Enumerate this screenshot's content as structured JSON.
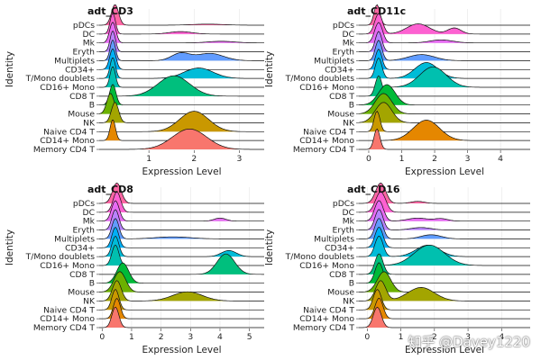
{
  "watermark": "知乎 @Davey1220",
  "palette": [
    "#F8766D",
    "#E58700",
    "#C99800",
    "#A3A500",
    "#6BB100",
    "#00BA38",
    "#00BF7D",
    "#00C0AF",
    "#00BCD8",
    "#00B0F6",
    "#619CFF",
    "#B983FF",
    "#E76BF3",
    "#FD61D1",
    "#FF67A4"
  ],
  "chart_data": [
    {
      "type": "ridgeline",
      "title": "adt_CD3",
      "xlabel": "Expression Level",
      "ylabel": "Identity",
      "xticks": [
        1,
        2,
        3
      ],
      "xlim": [
        -0.1,
        3.55
      ],
      "categories": [
        "Memory CD4 T",
        "CD14+ Mono",
        "Naive CD4 T",
        "NK",
        "Mouse",
        "B",
        "CD8 T",
        "CD16+ Mono",
        "T/Mono doublets",
        "CD34+",
        "Multiplets",
        "Eryth",
        "Mk",
        "DC",
        "pDCs"
      ],
      "series": [
        {
          "name": "Memory CD4 T",
          "peaks": [
            [
              1.9,
              0.38,
              1.0
            ]
          ]
        },
        {
          "name": "CD14+ Mono",
          "peaks": [
            [
              0.2,
              0.06,
              1.0
            ]
          ]
        },
        {
          "name": "Naive CD4 T",
          "peaks": [
            [
              2.0,
              0.32,
              1.0
            ]
          ]
        },
        {
          "name": "NK",
          "peaks": [
            [
              0.25,
              0.08,
              1.0
            ]
          ]
        },
        {
          "name": "Mouse",
          "peaks": [
            [
              0.15,
              0.08,
              1.0
            ]
          ]
        },
        {
          "name": "B",
          "peaks": [
            [
              0.2,
              0.07,
              1.0
            ]
          ]
        },
        {
          "name": "CD8 T",
          "peaks": [
            [
              1.55,
              0.35,
              1.0
            ]
          ]
        },
        {
          "name": "CD16+ Mono",
          "peaks": [
            [
              0.2,
              0.06,
              1.0
            ]
          ]
        },
        {
          "name": "T/Mono doublets",
          "peaks": [
            [
              0.2,
              0.06,
              1.0
            ],
            [
              2.1,
              0.32,
              0.5
            ]
          ]
        },
        {
          "name": "CD34+",
          "peaks": [
            [
              0.2,
              0.07,
              1.0
            ]
          ]
        },
        {
          "name": "Multiplets",
          "peaks": [
            [
              0.2,
              0.06,
              1.0
            ],
            [
              1.7,
              0.2,
              0.35
            ],
            [
              2.35,
              0.3,
              0.35
            ]
          ]
        },
        {
          "name": "Eryth",
          "peaks": [
            [
              0.2,
              0.06,
              1.0
            ]
          ]
        },
        {
          "name": "Mk",
          "peaks": [
            [
              0.2,
              0.07,
              1.0
            ],
            [
              2.6,
              0.3,
              0.08
            ]
          ]
        },
        {
          "name": "DC",
          "peaks": [
            [
              0.2,
              0.06,
              1.0
            ],
            [
              1.7,
              0.25,
              0.12
            ]
          ]
        },
        {
          "name": "pDCs",
          "peaks": [
            [
              0.25,
              0.08,
              1.0
            ],
            [
              2.3,
              0.35,
              0.05
            ]
          ]
        }
      ]
    },
    {
      "type": "ridgeline",
      "title": "adt_CD11c",
      "xlabel": "Expression Level",
      "ylabel": "Identity",
      "xticks": [
        0,
        1,
        2,
        3,
        4
      ],
      "xlim": [
        -0.3,
        4.9
      ],
      "categories": [
        "Memory CD4 T",
        "CD14+ Mono",
        "Naive CD4 T",
        "NK",
        "Mouse",
        "B",
        "CD8 T",
        "CD16+ Mono",
        "T/Mono doublets",
        "CD34+",
        "Multiplets",
        "Eryth",
        "Mk",
        "DC",
        "pDCs"
      ],
      "series": [
        {
          "name": "Memory CD4 T",
          "peaks": [
            [
              0.25,
              0.09,
              1.0
            ]
          ]
        },
        {
          "name": "CD14+ Mono",
          "peaks": [
            [
              1.75,
              0.4,
              1.0
            ]
          ]
        },
        {
          "name": "Naive CD4 T",
          "peaks": [
            [
              0.25,
              0.09,
              1.0
            ]
          ]
        },
        {
          "name": "NK",
          "peaks": [
            [
              0.45,
              0.25,
              1.0
            ]
          ]
        },
        {
          "name": "Mouse",
          "peaks": [
            [
              0.45,
              0.25,
              1.0
            ]
          ]
        },
        {
          "name": "B",
          "peaks": [
            [
              0.55,
              0.25,
              1.0
            ]
          ]
        },
        {
          "name": "CD8 T",
          "peaks": [
            [
              0.3,
              0.1,
              1.0
            ]
          ]
        },
        {
          "name": "CD16+ Mono",
          "peaks": [
            [
              1.95,
              0.4,
              1.0
            ]
          ]
        },
        {
          "name": "T/Mono doublets",
          "peaks": [
            [
              0.3,
              0.1,
              0.9
            ],
            [
              1.75,
              0.35,
              0.7
            ]
          ]
        },
        {
          "name": "CD34+",
          "peaks": [
            [
              0.3,
              0.1,
              1.0
            ]
          ]
        },
        {
          "name": "Multiplets",
          "peaks": [
            [
              0.3,
              0.1,
              1.0
            ],
            [
              1.6,
              0.4,
              0.3
            ]
          ]
        },
        {
          "name": "Eryth",
          "peaks": [
            [
              0.3,
              0.1,
              1.0
            ]
          ]
        },
        {
          "name": "Mk",
          "peaks": [
            [
              0.3,
              0.12,
              1.0
            ],
            [
              2.2,
              0.35,
              0.15
            ]
          ]
        },
        {
          "name": "DC",
          "peaks": [
            [
              0.3,
              0.12,
              1.0
            ],
            [
              1.5,
              0.35,
              0.5
            ],
            [
              2.6,
              0.2,
              0.3
            ]
          ]
        },
        {
          "name": "pDCs",
          "peaks": [
            [
              0.25,
              0.09,
              1.0
            ]
          ]
        }
      ]
    },
    {
      "type": "ridgeline",
      "title": "adt_CD8",
      "xlabel": "Expression Level",
      "ylabel": "Identity",
      "xticks": [
        0,
        1,
        2,
        3,
        4,
        5
      ],
      "xlim": [
        -0.1,
        5.5
      ],
      "categories": [
        "Memory CD4 T",
        "CD14+ Mono",
        "Naive CD4 T",
        "NK",
        "Mouse",
        "B",
        "CD8 T",
        "CD16+ Mono",
        "T/Mono doublets",
        "CD34+",
        "Multiplets",
        "Eryth",
        "Mk",
        "DC",
        "pDCs"
      ],
      "series": [
        {
          "name": "Memory CD4 T",
          "peaks": [
            [
              0.45,
              0.12,
              1.0
            ]
          ]
        },
        {
          "name": "CD14+ Mono",
          "peaks": [
            [
              0.5,
              0.12,
              1.0
            ]
          ]
        },
        {
          "name": "Naive CD4 T",
          "peaks": [
            [
              0.45,
              0.12,
              1.0
            ]
          ]
        },
        {
          "name": "NK",
          "peaks": [
            [
              0.5,
              0.15,
              1.0
            ],
            [
              2.9,
              0.5,
              0.45
            ]
          ]
        },
        {
          "name": "Mouse",
          "peaks": [
            [
              0.6,
              0.2,
              1.0
            ]
          ]
        },
        {
          "name": "B",
          "peaks": [
            [
              0.7,
              0.2,
              1.0
            ]
          ]
        },
        {
          "name": "CD8 T",
          "peaks": [
            [
              4.2,
              0.3,
              1.0
            ]
          ]
        },
        {
          "name": "CD16+ Mono",
          "peaks": [
            [
              0.45,
              0.12,
              1.0
            ]
          ]
        },
        {
          "name": "T/Mono doublets",
          "peaks": [
            [
              0.45,
              0.12,
              1.0
            ],
            [
              4.3,
              0.25,
              0.3
            ]
          ]
        },
        {
          "name": "CD34+",
          "peaks": [
            [
              0.45,
              0.12,
              1.0
            ]
          ]
        },
        {
          "name": "Multiplets",
          "peaks": [
            [
              0.45,
              0.12,
              1.0
            ],
            [
              2.4,
              0.6,
              0.1
            ]
          ]
        },
        {
          "name": "Eryth",
          "peaks": [
            [
              0.45,
              0.12,
              1.0
            ]
          ]
        },
        {
          "name": "Mk",
          "peaks": [
            [
              0.45,
              0.13,
              1.0
            ],
            [
              4.0,
              0.2,
              0.15
            ]
          ]
        },
        {
          "name": "DC",
          "peaks": [
            [
              0.5,
              0.13,
              1.0
            ]
          ]
        },
        {
          "name": "pDCs",
          "peaks": [
            [
              0.5,
              0.15,
              1.0
            ]
          ]
        }
      ]
    },
    {
      "type": "ridgeline",
      "title": "adt_CD16",
      "xlabel": "Expression Level",
      "ylabel": "Identity",
      "xticks": [
        0,
        1,
        2,
        3,
        4
      ],
      "xlim": [
        -0.25,
        4.85
      ],
      "categories": [
        "Memory CD4 T",
        "CD14+ Mono",
        "Naive CD4 T",
        "NK",
        "Mouse",
        "B",
        "CD8 T",
        "CD16+ Mono",
        "T/Mono doublets",
        "CD34+",
        "Multiplets",
        "Eryth",
        "Mk",
        "DC",
        "pDCs"
      ],
      "series": [
        {
          "name": "Memory CD4 T",
          "peaks": [
            [
              0.3,
              0.12,
              1.0
            ]
          ]
        },
        {
          "name": "CD14+ Mono",
          "peaks": [
            [
              0.35,
              0.12,
              1.0
            ]
          ]
        },
        {
          "name": "Naive CD4 T",
          "peaks": [
            [
              0.3,
              0.12,
              1.0
            ]
          ]
        },
        {
          "name": "NK",
          "peaks": [
            [
              0.4,
              0.15,
              0.9
            ],
            [
              1.6,
              0.4,
              0.6
            ]
          ]
        },
        {
          "name": "Mouse",
          "peaks": [
            [
              0.5,
              0.2,
              1.0
            ]
          ]
        },
        {
          "name": "B",
          "peaks": [
            [
              0.35,
              0.12,
              1.0
            ]
          ]
        },
        {
          "name": "CD8 T",
          "peaks": [
            [
              0.35,
              0.12,
              1.0
            ]
          ]
        },
        {
          "name": "CD16+ Mono",
          "peaks": [
            [
              1.85,
              0.45,
              1.0
            ]
          ]
        },
        {
          "name": "T/Mono doublets",
          "peaks": [
            [
              0.35,
              0.12,
              0.9
            ],
            [
              1.8,
              0.35,
              0.5
            ]
          ]
        },
        {
          "name": "CD34+",
          "peaks": [
            [
              0.35,
              0.12,
              1.0
            ]
          ]
        },
        {
          "name": "Multiplets",
          "peaks": [
            [
              0.35,
              0.12,
              1.0
            ],
            [
              1.9,
              0.3,
              0.2
            ]
          ]
        },
        {
          "name": "Eryth",
          "peaks": [
            [
              0.35,
              0.12,
              1.0
            ],
            [
              1.6,
              0.3,
              0.12
            ]
          ]
        },
        {
          "name": "Mk",
          "peaks": [
            [
              0.35,
              0.13,
              1.0
            ],
            [
              1.5,
              0.3,
              0.15
            ],
            [
              2.2,
              0.2,
              0.12
            ]
          ]
        },
        {
          "name": "DC",
          "peaks": [
            [
              0.4,
              0.15,
              1.0
            ]
          ]
        },
        {
          "name": "pDCs",
          "peaks": [
            [
              0.4,
              0.15,
              1.0
            ],
            [
              1.5,
              0.2,
              0.1
            ]
          ]
        }
      ]
    }
  ]
}
